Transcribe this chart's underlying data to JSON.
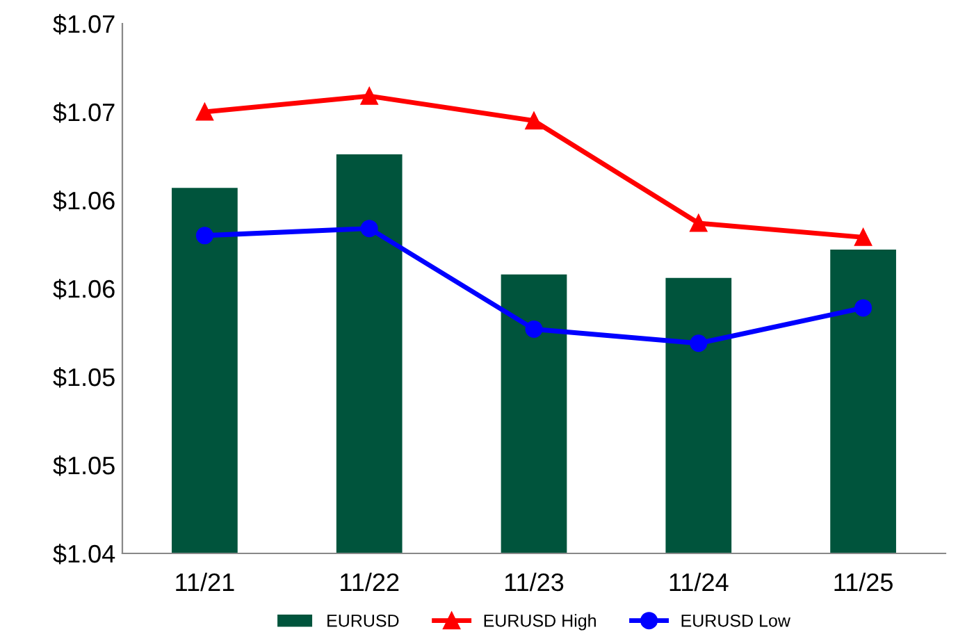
{
  "chart_data": {
    "type": "bar",
    "categories": [
      "11/21",
      "11/22",
      "11/23",
      "11/24",
      "11/25"
    ],
    "series": [
      {
        "name": "EURUSD",
        "color": "#00543c",
        "values": [
          1.0607,
          1.0626,
          1.0558,
          1.0556,
          1.0572
        ]
      },
      {
        "name": "EURUSD High",
        "type": "line",
        "color": "#ff0000",
        "marker": "triangle",
        "values": [
          1.065,
          1.0659,
          1.0645,
          1.0587,
          1.0579
        ]
      },
      {
        "name": "EURUSD Low",
        "type": "line",
        "color": "#0000ff",
        "marker": "circle",
        "values": [
          1.058,
          1.0584,
          1.0527,
          1.0519,
          1.0539
        ]
      }
    ],
    "ylim": [
      1.04,
      1.07
    ],
    "yticks": [
      {
        "value": 1.04,
        "label": "$1.04"
      },
      {
        "value": 1.045,
        "label": "$1.05"
      },
      {
        "value": 1.05,
        "label": "$1.05"
      },
      {
        "value": 1.055,
        "label": "$1.06"
      },
      {
        "value": 1.06,
        "label": "$1.06"
      },
      {
        "value": 1.065,
        "label": "$1.07"
      },
      {
        "value": 1.07,
        "label": "$1.07"
      }
    ],
    "grid": false,
    "legend": "bottom"
  }
}
